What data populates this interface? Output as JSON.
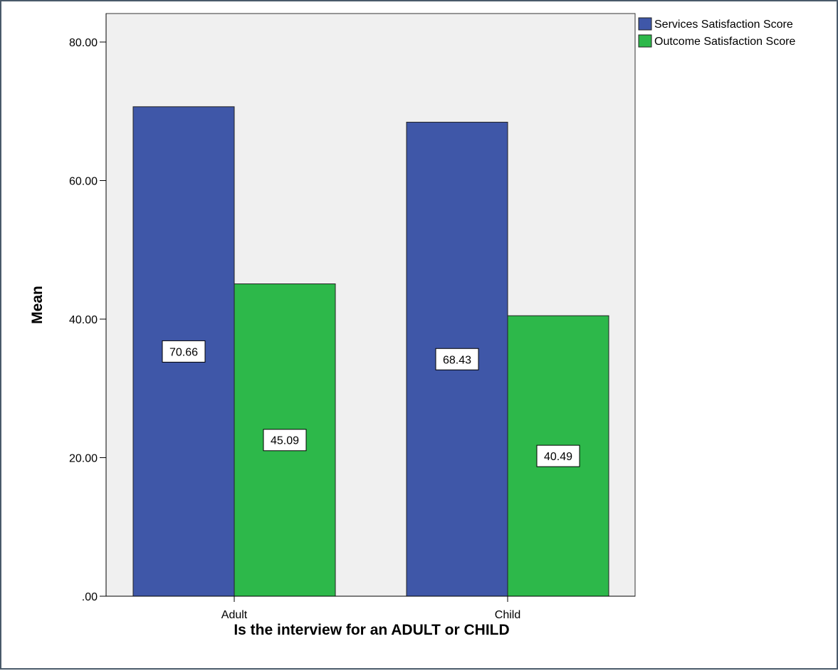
{
  "chart_data": {
    "type": "bar",
    "categories": [
      "Adult",
      "Child"
    ],
    "series": [
      {
        "name": "Services Satisfaction Score",
        "values": [
          70.66,
          68.43
        ],
        "color": "#3f57a8"
      },
      {
        "name": "Outcome Satisfaction Score",
        "values": [
          45.09,
          40.49
        ],
        "color": "#2db84a"
      }
    ],
    "data_labels": [
      [
        "70.66",
        "68.43"
      ],
      [
        "45.09",
        "40.49"
      ]
    ],
    "xlabel": "Is the interview for an ADULT or CHILD",
    "ylabel": "Mean",
    "ylim": [
      0,
      80
    ],
    "yticks": [
      0,
      20,
      40,
      60,
      80
    ],
    "ytick_labels": [
      ".00",
      "20.00",
      "40.00",
      "60.00",
      "80.00"
    ],
    "grid": false,
    "legend_position": "top-right, outside plot",
    "plot_background": "#f0f0f0"
  }
}
